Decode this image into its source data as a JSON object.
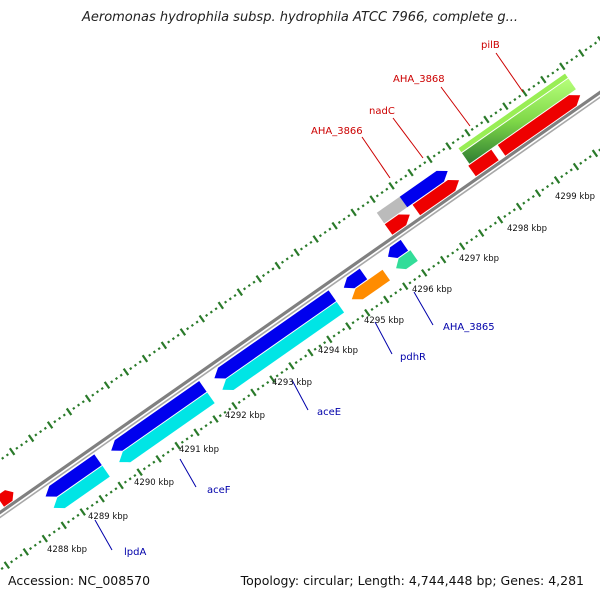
{
  "title": "Aeromonas hydrophila subsp. hydrophila ATCC 7966, complete g...",
  "footer": {
    "accession": "Accession: NC_008570",
    "summary": "Topology: circular; Length: 4,744,448 bp; Genes: 4,281"
  },
  "colors": {
    "backbone": "#808080",
    "tick_green": "#2a7a2a",
    "forward_label": "#cc0000",
    "reverse_label": "#0000aa",
    "blue": "#0000ee",
    "cyan": "#00e5e5",
    "red": "#ee0000",
    "green": "#4caf50",
    "lightgreen": "#99ee55",
    "orange": "#ff8c00",
    "seagreen": "#33dd99",
    "grey": "#bbbbbb"
  },
  "ruler": {
    "unit": "kbp",
    "labels": [
      "4288 kbp",
      "4289 kbp",
      "4290 kbp",
      "4291 kbp",
      "4292 kbp",
      "4293 kbp",
      "4294 kbp",
      "4295 kbp",
      "4296 kbp",
      "4297 kbp",
      "4298 kbp",
      "4299 kbp"
    ]
  },
  "gene_labels": {
    "forward": [
      "AHA_3866",
      "nadC",
      "AHA_3868",
      "pilB"
    ],
    "reverse": [
      "lpdA",
      "aceF",
      "aceE",
      "pdhR",
      "AHA_3865"
    ]
  }
}
